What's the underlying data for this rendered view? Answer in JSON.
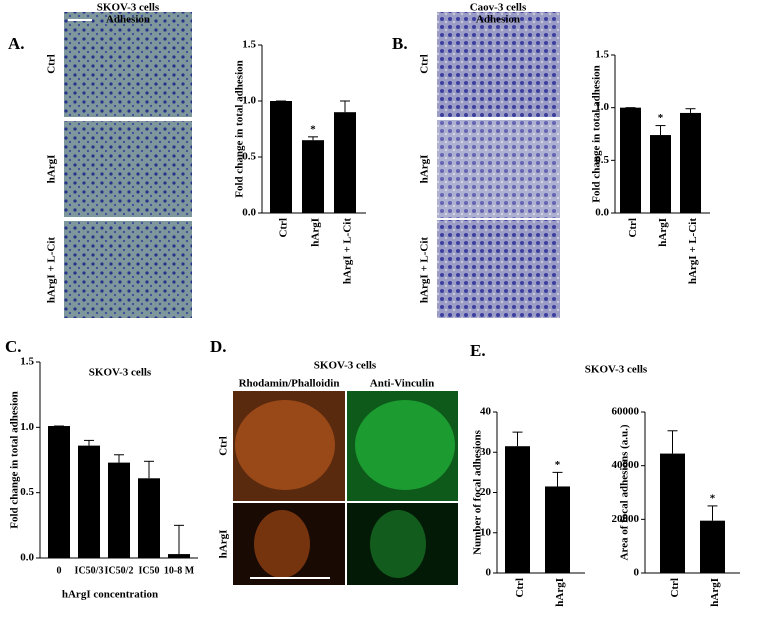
{
  "panels": {
    "A": {
      "letter": "A.",
      "header": [
        "SKOV-3 cells",
        "Adhesion"
      ],
      "rows": [
        "Ctrl",
        "hArgI",
        "hArgI + L-Cit"
      ]
    },
    "B": {
      "letter": "B.",
      "header": [
        "Caov-3 cells",
        "Adhesion"
      ],
      "rows": [
        "Ctrl",
        "hArgI",
        "hArgI + L-Cit"
      ]
    },
    "C": {
      "letter": "C."
    },
    "D": {
      "letter": "D.",
      "header": "SKOV-3 cells",
      "columns": [
        "Rhodamin/Phalloidin",
        "Anti-Vinculin"
      ],
      "rows": [
        "Ctrl",
        "hArgI"
      ]
    },
    "E": {
      "letter": "E.",
      "header": "SKOV-3 cells"
    }
  },
  "chart_data": [
    {
      "type": "bar",
      "ylabel": "Fold change in total adhesion",
      "categories": [
        "Ctrl",
        "hArgI",
        "hArgI + L-Cit"
      ],
      "values": [
        1.0,
        0.65,
        0.9
      ],
      "errors": [
        0,
        0.03,
        0.1
      ],
      "color": "#000000",
      "annotations": [
        "",
        "*",
        ""
      ],
      "ylim": [
        0,
        1.5
      ],
      "yticks": [
        {
          "value": 0,
          "label": "0.0"
        },
        {
          "value": 0.5,
          "label": "0.5"
        },
        {
          "value": 1,
          "label": "1.0"
        },
        {
          "value": 1.5,
          "label": "1.5"
        }
      ]
    },
    {
      "type": "bar",
      "ylabel": "Fold change in total adhesion",
      "categories": [
        "Ctrl",
        "hArgI",
        "hArgI + L-Cit"
      ],
      "values": [
        1.0,
        0.74,
        0.95
      ],
      "errors": [
        0,
        0.09,
        0.04
      ],
      "color": "#000000",
      "annotations": [
        "",
        "*",
        ""
      ],
      "ylim": [
        0,
        1.5
      ],
      "yticks": [
        {
          "value": 0,
          "label": "0.0"
        },
        {
          "value": 0.5,
          "label": "0.5"
        },
        {
          "value": 1,
          "label": "1.0"
        },
        {
          "value": 1.5,
          "label": "1.5"
        }
      ]
    },
    {
      "type": "bar",
      "title": "SKOV-3 cells",
      "ylabel": "Fold change in total adhesion",
      "xlabel": "hArgI concentration",
      "categories": [
        "0",
        "IC50/3",
        "IC50/2",
        "IC50",
        "10-8 M"
      ],
      "values": [
        1.01,
        0.86,
        0.73,
        0.61,
        0.03
      ],
      "errors": [
        0,
        0.04,
        0.06,
        0.13,
        0.22
      ],
      "color": "#000000",
      "ylim": [
        0,
        1.5
      ],
      "yticks": [
        {
          "value": 0,
          "label": "0.0"
        },
        {
          "value": 0.5,
          "label": "0.5"
        },
        {
          "value": 1,
          "label": "1.0"
        },
        {
          "value": 1.5,
          "label": "1.5"
        }
      ]
    },
    {
      "type": "bar",
      "ylabel": "Number of focal adhesions",
      "categories": [
        "Ctrl",
        "hArgI"
      ],
      "values": [
        31.5,
        21.5
      ],
      "errors": [
        3.5,
        3.5
      ],
      "color": "#000000",
      "annotations": [
        "",
        "*"
      ],
      "ylim": [
        0,
        40
      ],
      "yticks": [
        0,
        10,
        20,
        30,
        40
      ]
    },
    {
      "type": "bar",
      "ylabel": "Area of focal adhesions (a.u.)",
      "categories": [
        "Ctrl",
        "hArgI"
      ],
      "values": [
        44500,
        19500
      ],
      "errors": [
        8500,
        5500
      ],
      "color": "#000000",
      "annotations": [
        "",
        "*"
      ],
      "ylim": [
        0,
        60000
      ],
      "yticks": [
        0,
        20000,
        40000,
        60000
      ]
    }
  ]
}
